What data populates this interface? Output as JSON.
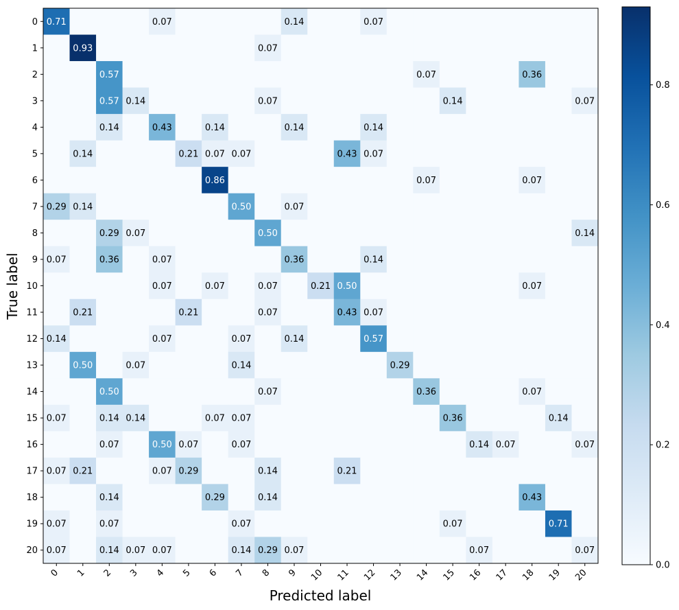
{
  "chart_data": {
    "type": "heatmap",
    "title": "",
    "xlabel": "Predicted label",
    "ylabel": "True label",
    "x_categories": [
      "0",
      "1",
      "2",
      "3",
      "4",
      "5",
      "6",
      "7",
      "8",
      "9",
      "10",
      "11",
      "12",
      "13",
      "14",
      "15",
      "16",
      "17",
      "18",
      "19",
      "20"
    ],
    "y_categories": [
      "0",
      "1",
      "2",
      "3",
      "4",
      "5",
      "6",
      "7",
      "8",
      "9",
      "10",
      "11",
      "12",
      "13",
      "14",
      "15",
      "16",
      "17",
      "18",
      "19",
      "20"
    ],
    "colormap": "Blues",
    "vmin": 0,
    "vmax": 0.93,
    "colorbar_ticks": [
      "0.0",
      "0.2",
      "0.4",
      "0.6",
      "0.8"
    ],
    "colorbar_tick_values": [
      0,
      0.2,
      0.4,
      0.6,
      0.8
    ],
    "matrix": [
      [
        0.71,
        0,
        0,
        0,
        0.07,
        0,
        0,
        0,
        0,
        0.14,
        0,
        0,
        0.07,
        0,
        0,
        0,
        0,
        0,
        0,
        0,
        0
      ],
      [
        0,
        0.93,
        0,
        0,
        0,
        0,
        0,
        0,
        0.07,
        0,
        0,
        0,
        0,
        0,
        0,
        0,
        0,
        0,
        0,
        0,
        0
      ],
      [
        0,
        0,
        0.57,
        0,
        0,
        0,
        0,
        0,
        0,
        0,
        0,
        0,
        0,
        0,
        0.07,
        0,
        0,
        0,
        0.36,
        0,
        0
      ],
      [
        0,
        0,
        0.57,
        0.14,
        0,
        0,
        0,
        0,
        0.07,
        0,
        0,
        0,
        0,
        0,
        0,
        0.14,
        0,
        0,
        0,
        0,
        0.07
      ],
      [
        0,
        0,
        0.14,
        0,
        0.43,
        0,
        0.14,
        0,
        0,
        0.14,
        0,
        0,
        0.14,
        0,
        0,
        0,
        0,
        0,
        0,
        0,
        0
      ],
      [
        0,
        0.14,
        0,
        0,
        0,
        0.21,
        0.07,
        0.07,
        0,
        0,
        0,
        0.43,
        0.07,
        0,
        0,
        0,
        0,
        0,
        0,
        0,
        0
      ],
      [
        0,
        0,
        0,
        0,
        0,
        0,
        0.86,
        0,
        0,
        0,
        0,
        0,
        0,
        0,
        0.07,
        0,
        0,
        0,
        0.07,
        0,
        0
      ],
      [
        0.29,
        0.14,
        0,
        0,
        0,
        0,
        0,
        0.5,
        0,
        0.07,
        0,
        0,
        0,
        0,
        0,
        0,
        0,
        0,
        0,
        0,
        0
      ],
      [
        0,
        0,
        0.29,
        0.07,
        0,
        0,
        0,
        0,
        0.5,
        0,
        0,
        0,
        0,
        0,
        0,
        0,
        0,
        0,
        0,
        0,
        0.14
      ],
      [
        0.07,
        0,
        0.36,
        0,
        0.07,
        0,
        0,
        0,
        0,
        0.36,
        0,
        0,
        0.14,
        0,
        0,
        0,
        0,
        0,
        0,
        0,
        0
      ],
      [
        0,
        0,
        0,
        0,
        0.07,
        0,
        0.07,
        0,
        0.07,
        0,
        0.21,
        0.5,
        0,
        0,
        0,
        0,
        0,
        0,
        0.07,
        0,
        0
      ],
      [
        0,
        0.21,
        0,
        0,
        0,
        0.21,
        0,
        0,
        0.07,
        0,
        0,
        0.43,
        0.07,
        0,
        0,
        0,
        0,
        0,
        0,
        0,
        0
      ],
      [
        0.14,
        0,
        0,
        0,
        0.07,
        0,
        0,
        0.07,
        0,
        0.14,
        0,
        0,
        0.57,
        0,
        0,
        0,
        0,
        0,
        0,
        0,
        0
      ],
      [
        0,
        0.5,
        0,
        0.07,
        0,
        0,
        0,
        0.14,
        0,
        0,
        0,
        0,
        0,
        0.29,
        0,
        0,
        0,
        0,
        0,
        0,
        0
      ],
      [
        0,
        0,
        0.5,
        0,
        0,
        0,
        0,
        0,
        0.07,
        0,
        0,
        0,
        0,
        0,
        0.36,
        0,
        0,
        0,
        0.07,
        0,
        0
      ],
      [
        0.07,
        0,
        0.14,
        0.14,
        0,
        0,
        0.07,
        0.07,
        0,
        0,
        0,
        0,
        0,
        0,
        0,
        0.36,
        0,
        0,
        0,
        0.14,
        0
      ],
      [
        0,
        0,
        0.07,
        0,
        0.5,
        0.07,
        0,
        0.07,
        0,
        0,
        0,
        0,
        0,
        0,
        0,
        0,
        0.14,
        0.07,
        0,
        0,
        0.07
      ],
      [
        0.07,
        0.21,
        0,
        0,
        0.07,
        0.29,
        0,
        0,
        0.14,
        0,
        0,
        0.21,
        0,
        0,
        0,
        0,
        0,
        0,
        0,
        0,
        0
      ],
      [
        0,
        0,
        0.14,
        0,
        0,
        0,
        0.29,
        0,
        0.14,
        0,
        0,
        0,
        0,
        0,
        0,
        0,
        0,
        0,
        0.43,
        0,
        0
      ],
      [
        0.07,
        0,
        0.07,
        0,
        0,
        0,
        0,
        0.07,
        0,
        0,
        0,
        0,
        0,
        0,
        0,
        0.07,
        0,
        0,
        0,
        0.71,
        0
      ],
      [
        0.07,
        0,
        0.14,
        0.07,
        0.07,
        0,
        0,
        0.14,
        0.29,
        0.07,
        0,
        0,
        0,
        0,
        0,
        0,
        0.07,
        0,
        0,
        0,
        0.07
      ]
    ]
  }
}
